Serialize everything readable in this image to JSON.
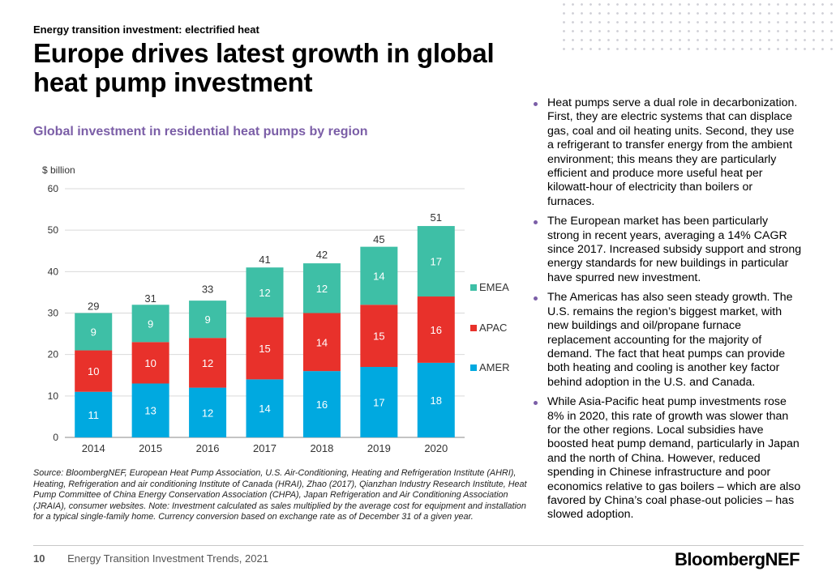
{
  "section_label": "Energy transition investment: electrified heat",
  "headline": "Europe drives latest growth in global heat pump investment",
  "chart_title": "Global investment in residential heat pumps by region",
  "chart_data": {
    "type": "bar",
    "stacked": true,
    "ylabel": "$ billion",
    "ylim": [
      0,
      60
    ],
    "yticks": [
      0,
      10,
      20,
      30,
      40,
      50,
      60
    ],
    "categories": [
      "2014",
      "2015",
      "2016",
      "2017",
      "2018",
      "2019",
      "2020"
    ],
    "series": [
      {
        "name": "AMER",
        "color": "#00a9e0",
        "values": [
          11,
          13,
          12,
          14,
          16,
          17,
          18
        ],
        "labels": [
          "11",
          "13",
          "12",
          "14",
          "16",
          "17",
          "18"
        ]
      },
      {
        "name": "APAC",
        "color": "#e8312b",
        "values": [
          10,
          10,
          12,
          15,
          14,
          15,
          16
        ],
        "labels": [
          "10",
          "10",
          "12",
          "15",
          "14",
          "15",
          "16"
        ]
      },
      {
        "name": "EMEA",
        "color": "#3ebfa6",
        "values": [
          9,
          9,
          9,
          12,
          12,
          14,
          17
        ],
        "labels": [
          "9",
          "9",
          "9",
          "12",
          "12",
          "14",
          "17"
        ]
      }
    ],
    "totals": [
      29.4,
      31.3,
      33.5,
      40.7,
      41.8,
      45.5,
      50.8
    ],
    "total_labels": [
      "29",
      "31",
      "33",
      "41",
      "42",
      "45",
      "51"
    ],
    "legend": [
      "EMEA",
      "APAC",
      "AMER"
    ],
    "legend_position": "right",
    "grid": true
  },
  "source_note": "Source: BloombergNEF, European Heat Pump Association, U.S. Air-Conditioning, Heating and Refrigeration Institute (AHRI), Heating, Refrigeration and air conditioning Institute of Canada (HRAI), Zhao (2017), Qianzhan Industry Research Institute, Heat Pump Committee of China Energy Conservation Association (CHPA), Japan Refrigeration and Air Conditioning Association (JRAIA), consumer websites. Note: Investment calculated as sales multiplied by the average cost for equipment and installation for a typical single-family home. Currency conversion based on exchange rate as of December 31 of a given year.",
  "bullets": [
    "Heat pumps serve a dual role in decarbonization. First, they are electric systems that can displace gas, coal and oil heating units. Second, they use a refrigerant to transfer energy from the ambient environment; this means they are particularly efficient and produce more useful heat per kilowatt-hour of electricity than boilers or furnaces.",
    "The European market has been particularly strong in recent years, averaging a 14% CAGR since 2017. Increased subsidy support and strong energy standards for new buildings in particular have spurred new investment.",
    "The Americas has also seen steady growth. The U.S. remains the region’s biggest market, with new buildings and oil/propane furnace replacement accounting for the majority of demand. The fact that heat pumps can provide both heating and cooling is another key factor behind adoption in the U.S. and Canada.",
    "While Asia-Pacific heat pump investments rose 8% in 2020, this rate of growth was slower than for the other regions. Local subsidies have boosted heat pump demand, particularly in Japan and the north of China. However, reduced spending in Chinese infrastructure and poor economics relative to gas boilers – which are also favored by China’s coal phase-out policies – has slowed adoption."
  ],
  "footer": {
    "page_number": "10",
    "report_title": "Energy Transition Investment Trends, 2021",
    "brand": "BloombergNEF"
  }
}
